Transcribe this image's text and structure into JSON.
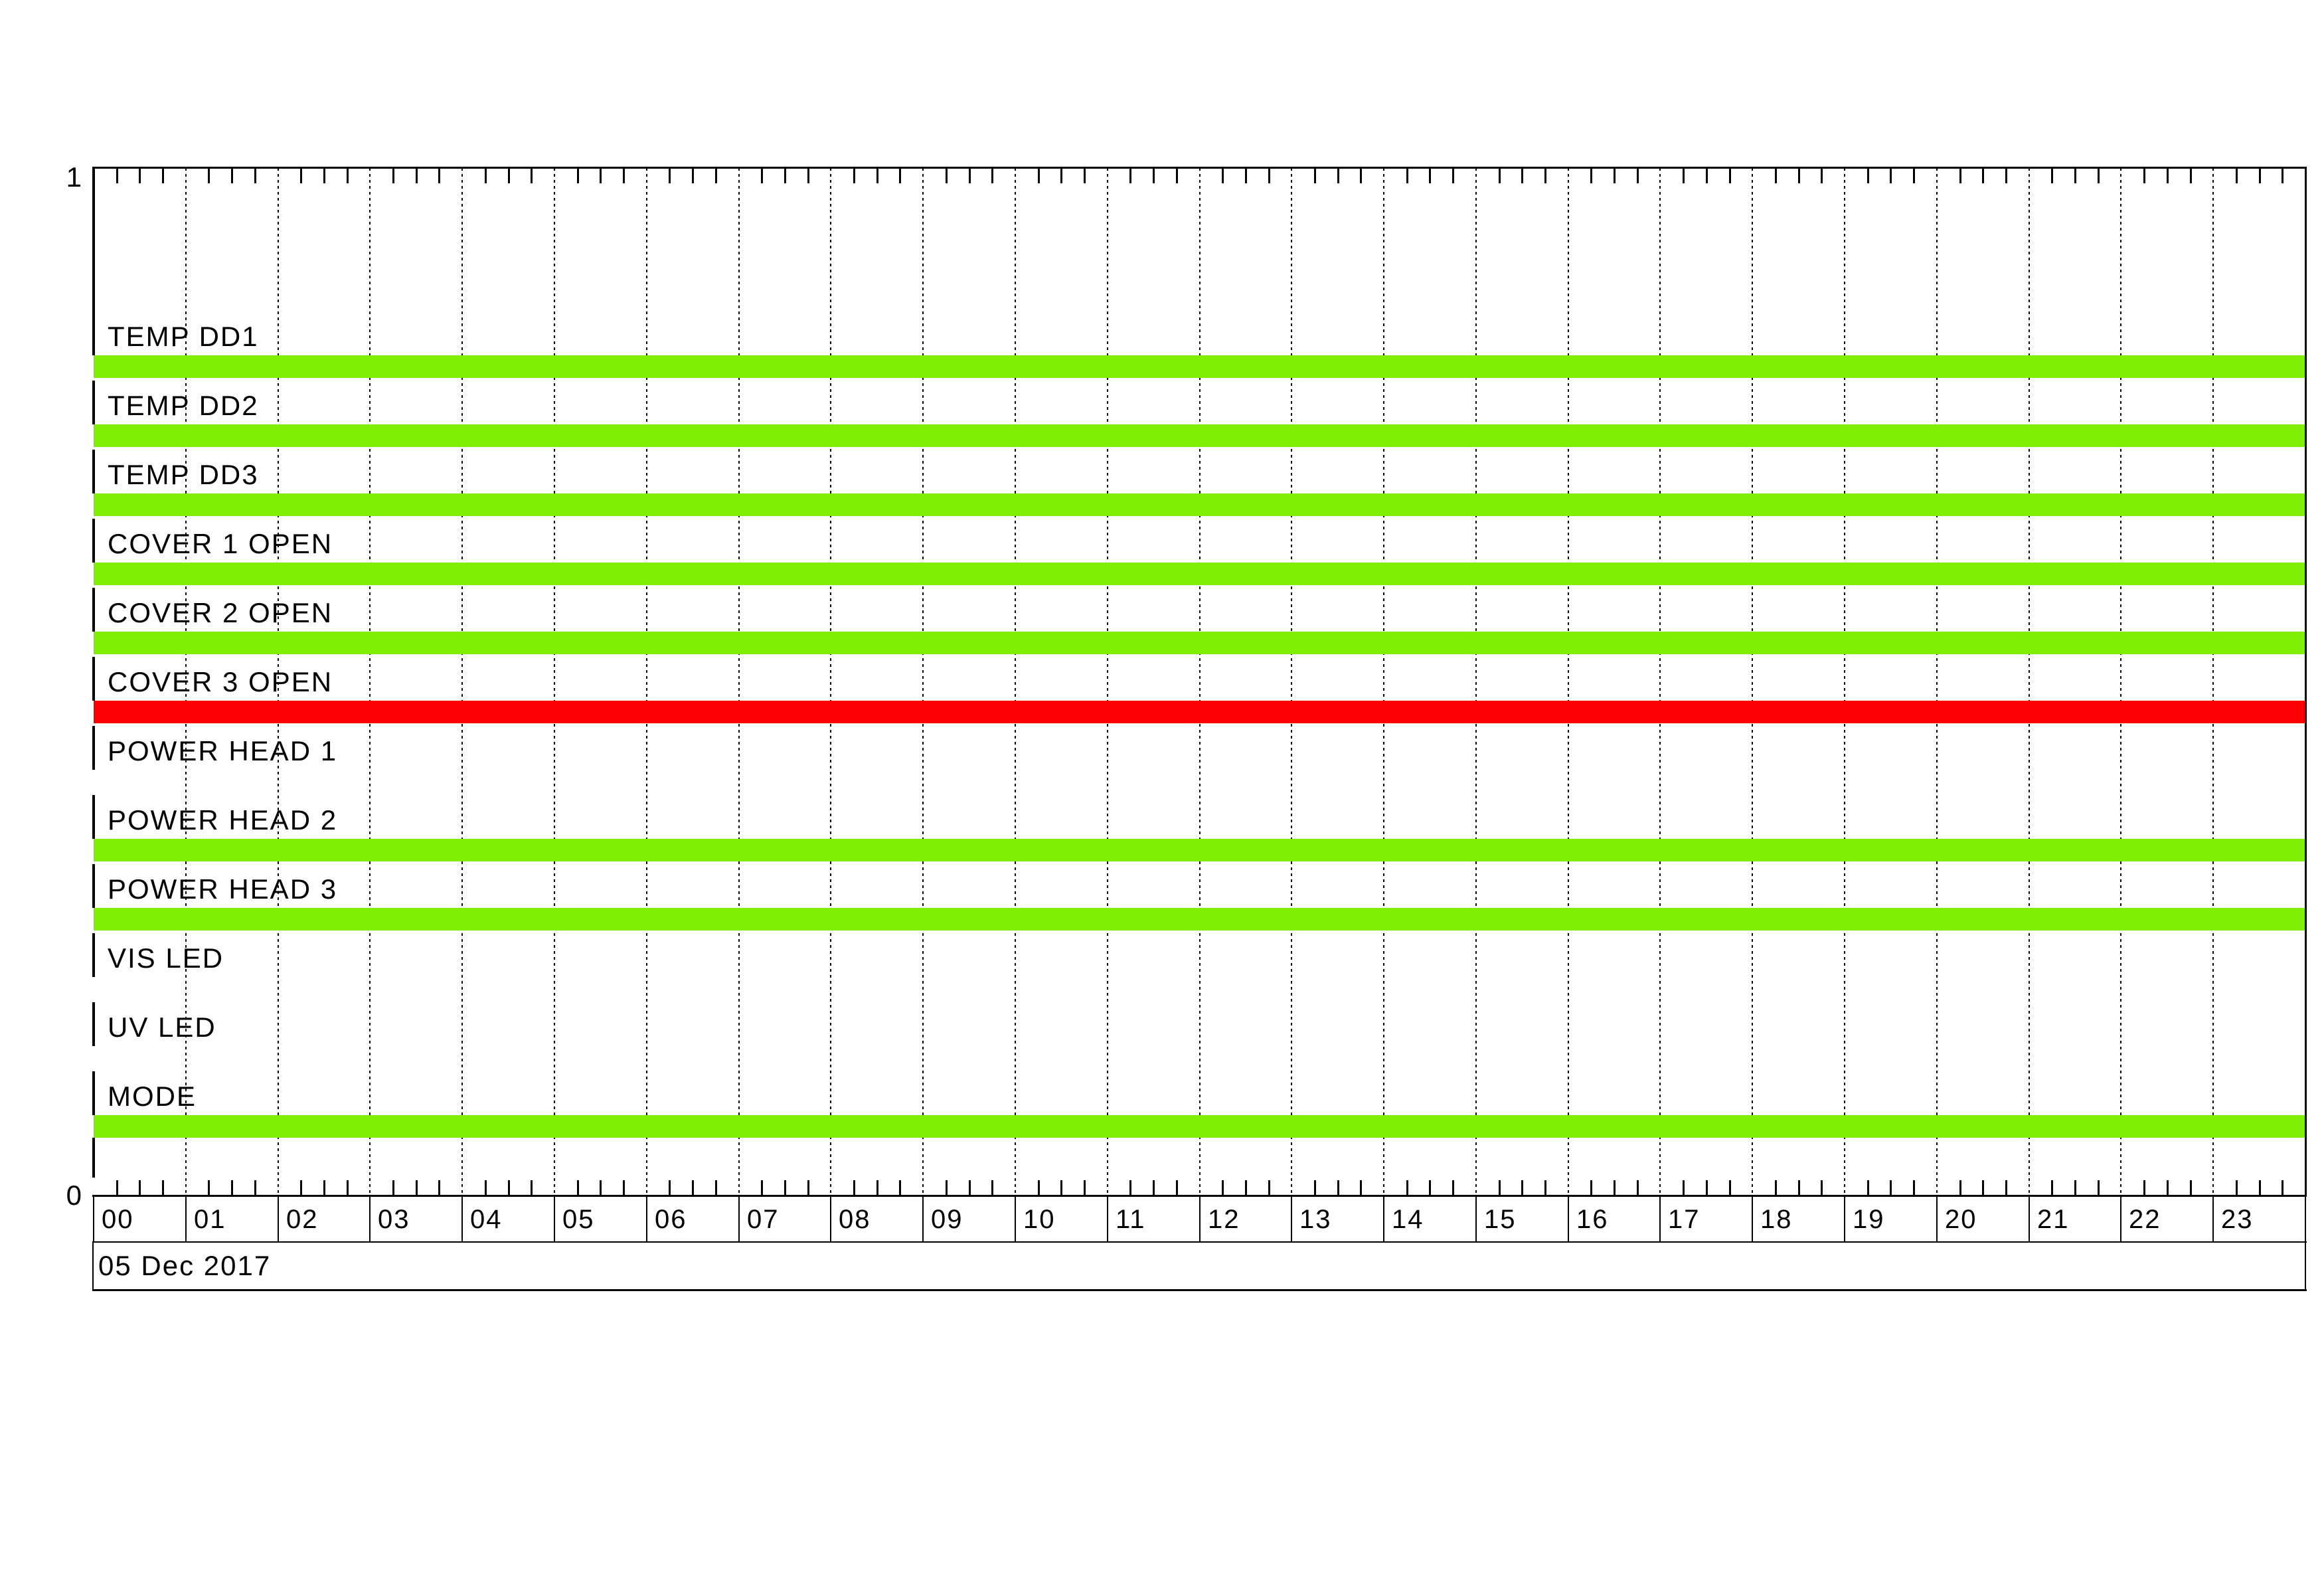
{
  "chart_data": {
    "type": "bar",
    "subtype": "status-timeline",
    "title": "",
    "date": "05 Dec 2017",
    "x_axis": {
      "unit": "hours",
      "range": [
        0,
        24
      ],
      "tick_labels": [
        "00",
        "01",
        "02",
        "03",
        "04",
        "05",
        "06",
        "07",
        "08",
        "09",
        "10",
        "11",
        "12",
        "13",
        "14",
        "15",
        "16",
        "17",
        "18",
        "19",
        "20",
        "21",
        "22",
        "23"
      ],
      "minor_tick_interval_minutes": 15,
      "gridlines": "dotted vertical line at every hour"
    },
    "y_axis": {
      "top_label": "1",
      "bottom_label": "0",
      "range": [
        0,
        1
      ]
    },
    "legend": "none",
    "categories": [
      "TEMP DD1",
      "TEMP DD2",
      "TEMP DD3",
      "COVER 1 OPEN",
      "COVER 2 OPEN",
      "COVER 3 OPEN",
      "POWER HEAD 1",
      "POWER HEAD 2",
      "POWER HEAD 3",
      "VIS LED",
      "UV LED",
      "MODE"
    ],
    "series": [
      {
        "name": "TEMP DD1",
        "state": "on",
        "segments": [
          {
            "start": 0,
            "end": 24,
            "color": "#7CF000"
          }
        ]
      },
      {
        "name": "TEMP DD2",
        "state": "on",
        "segments": [
          {
            "start": 0,
            "end": 24,
            "color": "#7CF000"
          }
        ]
      },
      {
        "name": "TEMP DD3",
        "state": "on",
        "segments": [
          {
            "start": 0,
            "end": 24,
            "color": "#7CF000"
          }
        ]
      },
      {
        "name": "COVER 1 OPEN",
        "state": "on",
        "segments": [
          {
            "start": 0,
            "end": 24,
            "color": "#7CF000"
          }
        ]
      },
      {
        "name": "COVER 2 OPEN",
        "state": "on",
        "segments": [
          {
            "start": 0,
            "end": 24,
            "color": "#7CF000"
          }
        ]
      },
      {
        "name": "COVER 3 OPEN",
        "state": "alarm",
        "segments": [
          {
            "start": 0,
            "end": 24,
            "color": "#FA0000"
          }
        ]
      },
      {
        "name": "POWER HEAD 1",
        "state": "off",
        "segments": []
      },
      {
        "name": "POWER HEAD 2",
        "state": "on",
        "segments": [
          {
            "start": 0,
            "end": 24,
            "color": "#7CF000"
          }
        ]
      },
      {
        "name": "POWER HEAD 3",
        "state": "on",
        "segments": [
          {
            "start": 0,
            "end": 24,
            "color": "#7CF000"
          }
        ]
      },
      {
        "name": "VIS LED",
        "state": "off",
        "segments": []
      },
      {
        "name": "UV LED",
        "state": "off",
        "segments": []
      },
      {
        "name": "MODE",
        "state": "on",
        "segments": [
          {
            "start": 0,
            "end": 24,
            "color": "#7CF000"
          }
        ]
      }
    ],
    "colors": {
      "active_green": "#7CF000",
      "alert_red": "#FA0000",
      "line": "#000000",
      "background": "#FFFFFF"
    }
  }
}
